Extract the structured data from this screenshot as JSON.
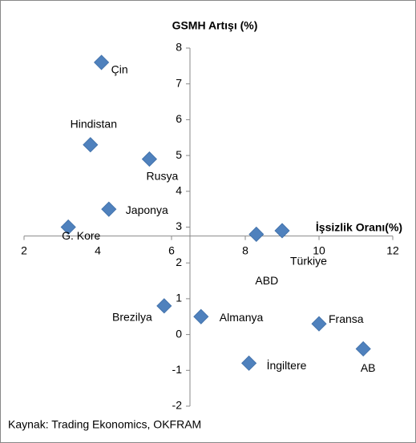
{
  "chart_data": {
    "type": "scatter",
    "title": "GSMH Artışı (%)",
    "x_label": "İşsizlik Oranı(%)",
    "source": "Kaynak: Trading Ekonomics, OKFRAM",
    "labels": [
      "Çin",
      "Hindistan",
      "Rusya",
      "Japonya",
      "G. Kore",
      "ABD",
      "Türkiye",
      "Brezilya",
      "Almanya",
      "Fransa",
      "İngiltere",
      "AB"
    ],
    "x": [
      4.1,
      3.8,
      5.4,
      4.3,
      3.2,
      8.3,
      9.0,
      5.8,
      6.8,
      10.0,
      8.1,
      11.2
    ],
    "values": [
      7.6,
      5.3,
      4.9,
      3.5,
      3.0,
      2.8,
      2.9,
      0.8,
      0.5,
      0.3,
      -0.8,
      -0.4
    ],
    "color": "#4f81bd",
    "xlim": [
      2,
      12
    ],
    "xticks": [
      2,
      4,
      6,
      8,
      10,
      12
    ],
    "ylim": [
      -2,
      8
    ],
    "yticks": [
      -2,
      -1,
      0,
      1,
      2,
      3,
      4,
      5,
      6,
      7,
      8
    ],
    "x_axis_at": 2.75,
    "y_axis_at": 6.5
  }
}
